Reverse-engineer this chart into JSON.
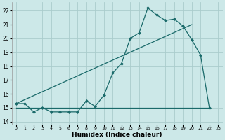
{
  "bg_color": "#cce8e8",
  "grid_color": "#aacccc",
  "line_color": "#1a6a6a",
  "xlabel": "Humidex (Indice chaleur)",
  "xlim": [
    -0.5,
    23.5
  ],
  "ylim": [
    13.8,
    22.6
  ],
  "yticks": [
    14,
    15,
    16,
    17,
    18,
    19,
    20,
    21,
    22
  ],
  "xticks": [
    0,
    1,
    2,
    3,
    4,
    5,
    6,
    7,
    8,
    9,
    10,
    11,
    12,
    13,
    14,
    15,
    16,
    17,
    18,
    19,
    20,
    21,
    22,
    23
  ],
  "curve1_x": [
    0,
    1,
    2,
    3,
    4,
    5,
    6,
    7,
    8,
    9,
    10,
    11,
    12,
    13,
    14,
    15,
    16,
    17,
    18,
    19,
    20,
    21,
    22
  ],
  "curve1_y": [
    15.3,
    15.3,
    14.7,
    15.0,
    14.7,
    14.7,
    14.7,
    14.7,
    15.5,
    15.1,
    15.9,
    17.5,
    18.2,
    20.0,
    20.4,
    22.2,
    21.7,
    21.3,
    21.4,
    20.9,
    19.9,
    18.8,
    15.0
  ],
  "curve2_x": [
    0,
    20
  ],
  "curve2_y": [
    15.3,
    21.0
  ],
  "curve3_x": [
    0,
    22
  ],
  "curve3_y": [
    15.0,
    15.0
  ],
  "marker": "D",
  "markersize": 2.0,
  "linewidth": 0.9
}
